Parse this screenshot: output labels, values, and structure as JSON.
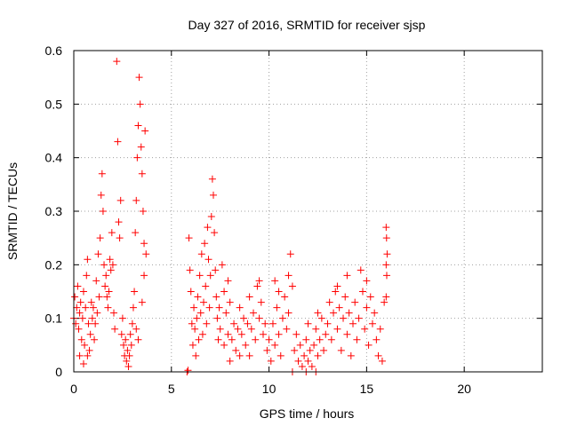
{
  "chart_data": {
    "type": "scatter",
    "title": "Day 327 of 2016, SRMTID for receiver sjsp",
    "xlabel": "GPS time / hours",
    "ylabel": "SRMTID / TECUs",
    "xlim": [
      0,
      24
    ],
    "ylim": [
      0,
      0.6
    ],
    "xticks": [
      0,
      5,
      10,
      15,
      20
    ],
    "xtick_labels": [
      "0",
      "5",
      "10",
      "15",
      "20"
    ],
    "yticks": [
      0,
      0.1,
      0.2,
      0.3,
      0.4,
      0.5,
      0.6
    ],
    "ytick_labels": [
      "0",
      "0.1",
      "0.2",
      "0.3",
      "0.4",
      "0.5",
      "0.6"
    ],
    "grid": true,
    "marker": "plus",
    "color": "#ff0000",
    "series": [
      {
        "name": "SRMTID",
        "points": [
          [
            0.0,
            0.1
          ],
          [
            0.05,
            0.14
          ],
          [
            0.1,
            0.09
          ],
          [
            0.15,
            0.12
          ],
          [
            0.2,
            0.16
          ],
          [
            0.25,
            0.08
          ],
          [
            0.3,
            0.11
          ],
          [
            0.35,
            0.13
          ],
          [
            0.4,
            0.06
          ],
          [
            0.45,
            0.1
          ],
          [
            0.5,
            0.15
          ],
          [
            0.55,
            0.05
          ],
          [
            0.6,
            0.12
          ],
          [
            0.65,
            0.18
          ],
          [
            0.7,
            0.21
          ],
          [
            0.75,
            0.09
          ],
          [
            0.8,
            0.04
          ],
          [
            0.85,
            0.07
          ],
          [
            0.9,
            0.13
          ],
          [
            0.95,
            0.1
          ],
          [
            0.3,
            0.03
          ],
          [
            0.5,
            0.015
          ],
          [
            0.7,
            0.03
          ],
          [
            1.0,
            0.12
          ],
          [
            1.05,
            0.06
          ],
          [
            1.1,
            0.09
          ],
          [
            1.15,
            0.17
          ],
          [
            1.2,
            0.11
          ],
          [
            1.25,
            0.22
          ],
          [
            1.3,
            0.14
          ],
          [
            1.35,
            0.25
          ],
          [
            1.4,
            0.33
          ],
          [
            1.45,
            0.37
          ],
          [
            1.5,
            0.3
          ],
          [
            1.55,
            0.2
          ],
          [
            1.6,
            0.16
          ],
          [
            1.65,
            0.18
          ],
          [
            1.7,
            0.14
          ],
          [
            1.75,
            0.12
          ],
          [
            1.8,
            0.15
          ],
          [
            1.85,
            0.21
          ],
          [
            1.9,
            0.19
          ],
          [
            1.95,
            0.26
          ],
          [
            2.0,
            0.2
          ],
          [
            2.05,
            0.11
          ],
          [
            2.1,
            0.08
          ],
          [
            2.2,
            0.58
          ],
          [
            2.25,
            0.43
          ],
          [
            2.3,
            0.28
          ],
          [
            2.35,
            0.25
          ],
          [
            2.4,
            0.32
          ],
          [
            2.45,
            0.07
          ],
          [
            2.5,
            0.1
          ],
          [
            2.55,
            0.05
          ],
          [
            2.6,
            0.03
          ],
          [
            2.65,
            0.06
          ],
          [
            2.7,
            0.02
          ],
          [
            2.75,
            0.04
          ],
          [
            2.8,
            0.01
          ],
          [
            2.85,
            0.03
          ],
          [
            2.9,
            0.07
          ],
          [
            2.95,
            0.05
          ],
          [
            3.0,
            0.09
          ],
          [
            3.05,
            0.12
          ],
          [
            3.1,
            0.15
          ],
          [
            3.15,
            0.26
          ],
          [
            3.2,
            0.32
          ],
          [
            3.25,
            0.4
          ],
          [
            3.3,
            0.46
          ],
          [
            3.35,
            0.55
          ],
          [
            3.4,
            0.5
          ],
          [
            3.45,
            0.42
          ],
          [
            3.5,
            0.37
          ],
          [
            3.55,
            0.3
          ],
          [
            3.6,
            0.24
          ],
          [
            3.65,
            0.45
          ],
          [
            3.7,
            0.22
          ],
          [
            3.2,
            0.08
          ],
          [
            3.3,
            0.06
          ],
          [
            3.5,
            0.13
          ],
          [
            3.6,
            0.18
          ],
          [
            5.8,
            0.0
          ],
          [
            5.85,
            0.003
          ],
          [
            5.9,
            0.25
          ],
          [
            5.95,
            0.19
          ],
          [
            6.0,
            0.15
          ],
          [
            6.05,
            0.09
          ],
          [
            6.1,
            0.05
          ],
          [
            6.15,
            0.12
          ],
          [
            6.2,
            0.08
          ],
          [
            6.25,
            0.03
          ],
          [
            6.3,
            0.1
          ],
          [
            6.35,
            0.14
          ],
          [
            6.4,
            0.06
          ],
          [
            6.45,
            0.18
          ],
          [
            6.5,
            0.11
          ],
          [
            6.55,
            0.22
          ],
          [
            6.6,
            0.07
          ],
          [
            6.65,
            0.13
          ],
          [
            6.7,
            0.24
          ],
          [
            6.75,
            0.16
          ],
          [
            6.8,
            0.09
          ],
          [
            6.85,
            0.27
          ],
          [
            6.9,
            0.21
          ],
          [
            6.95,
            0.12
          ],
          [
            7.0,
            0.18
          ],
          [
            7.05,
            0.29
          ],
          [
            7.1,
            0.36
          ],
          [
            7.15,
            0.33
          ],
          [
            7.2,
            0.26
          ],
          [
            7.25,
            0.19
          ],
          [
            7.3,
            0.14
          ],
          [
            7.35,
            0.1
          ],
          [
            7.4,
            0.06
          ],
          [
            7.45,
            0.12
          ],
          [
            7.5,
            0.08
          ],
          [
            7.6,
            0.2
          ],
          [
            7.7,
            0.05
          ],
          [
            7.8,
            0.11
          ],
          [
            7.9,
            0.07
          ],
          [
            8.0,
            0.13
          ],
          [
            8.1,
            0.06
          ],
          [
            8.2,
            0.09
          ],
          [
            8.3,
            0.04
          ],
          [
            8.4,
            0.08
          ],
          [
            8.5,
            0.12
          ],
          [
            8.6,
            0.07
          ],
          [
            8.7,
            0.1
          ],
          [
            8.8,
            0.05
          ],
          [
            8.9,
            0.09
          ],
          [
            9.0,
            0.14
          ],
          [
            9.1,
            0.08
          ],
          [
            9.2,
            0.11
          ],
          [
            9.3,
            0.06
          ],
          [
            9.4,
            0.16
          ],
          [
            9.5,
            0.1
          ],
          [
            9.6,
            0.13
          ],
          [
            9.7,
            0.07
          ],
          [
            9.8,
            0.09
          ],
          [
            9.9,
            0.04
          ],
          [
            7.7,
            0.15
          ],
          [
            8.0,
            0.02
          ],
          [
            8.5,
            0.03
          ],
          [
            9.0,
            0.03
          ],
          [
            9.5,
            0.17
          ],
          [
            7.9,
            0.17
          ],
          [
            10.0,
            0.06
          ],
          [
            10.1,
            0.02
          ],
          [
            10.2,
            0.09
          ],
          [
            10.3,
            0.05
          ],
          [
            10.4,
            0.12
          ],
          [
            10.5,
            0.07
          ],
          [
            10.6,
            0.03
          ],
          [
            10.7,
            0.1
          ],
          [
            10.8,
            0.14
          ],
          [
            10.9,
            0.08
          ],
          [
            11.0,
            0.11
          ],
          [
            11.1,
            0.22
          ],
          [
            11.2,
            0.16
          ],
          [
            11.3,
            0.04
          ],
          [
            11.4,
            0.07
          ],
          [
            11.5,
            0.02
          ],
          [
            11.6,
            0.05
          ],
          [
            11.7,
            0.01
          ],
          [
            11.8,
            0.03
          ],
          [
            11.9,
            0.06
          ],
          [
            12.0,
            0.02
          ],
          [
            12.1,
            0.04
          ],
          [
            12.2,
            0.01
          ],
          [
            12.3,
            0.05
          ],
          [
            12.4,
            0.08
          ],
          [
            12.5,
            0.03
          ],
          [
            12.6,
            0.06
          ],
          [
            12.7,
            0.1
          ],
          [
            12.8,
            0.04
          ],
          [
            12.9,
            0.07
          ],
          [
            10.5,
            0.15
          ],
          [
            11.0,
            0.18
          ],
          [
            12.0,
            0.09
          ],
          [
            12.5,
            0.11
          ],
          [
            11.2,
            0.0
          ],
          [
            11.9,
            0.0
          ],
          [
            12.4,
            0.0
          ],
          [
            10.3,
            0.17
          ],
          [
            13.0,
            0.09
          ],
          [
            13.1,
            0.13
          ],
          [
            13.2,
            0.06
          ],
          [
            13.3,
            0.11
          ],
          [
            13.4,
            0.15
          ],
          [
            13.5,
            0.08
          ],
          [
            13.6,
            0.12
          ],
          [
            13.7,
            0.04
          ],
          [
            13.8,
            0.1
          ],
          [
            13.9,
            0.14
          ],
          [
            14.0,
            0.07
          ],
          [
            14.1,
            0.11
          ],
          [
            14.2,
            0.03
          ],
          [
            14.3,
            0.09
          ],
          [
            14.4,
            0.13
          ],
          [
            14.5,
            0.06
          ],
          [
            14.6,
            0.1
          ],
          [
            14.7,
            0.19
          ],
          [
            14.8,
            0.15
          ],
          [
            14.9,
            0.08
          ],
          [
            15.0,
            0.12
          ],
          [
            15.1,
            0.05
          ],
          [
            15.2,
            0.14
          ],
          [
            15.3,
            0.09
          ],
          [
            15.4,
            0.11
          ],
          [
            15.5,
            0.06
          ],
          [
            15.6,
            0.03
          ],
          [
            15.7,
            0.08
          ],
          [
            15.8,
            0.02
          ],
          [
            15.9,
            0.13
          ],
          [
            14.0,
            0.18
          ],
          [
            13.5,
            0.16
          ],
          [
            15.0,
            0.17
          ],
          [
            16.0,
            0.27
          ],
          [
            16.02,
            0.25
          ],
          [
            16.05,
            0.22
          ],
          [
            16.0,
            0.2
          ],
          [
            16.03,
            0.18
          ],
          [
            16.0,
            0.14
          ]
        ]
      }
    ]
  }
}
